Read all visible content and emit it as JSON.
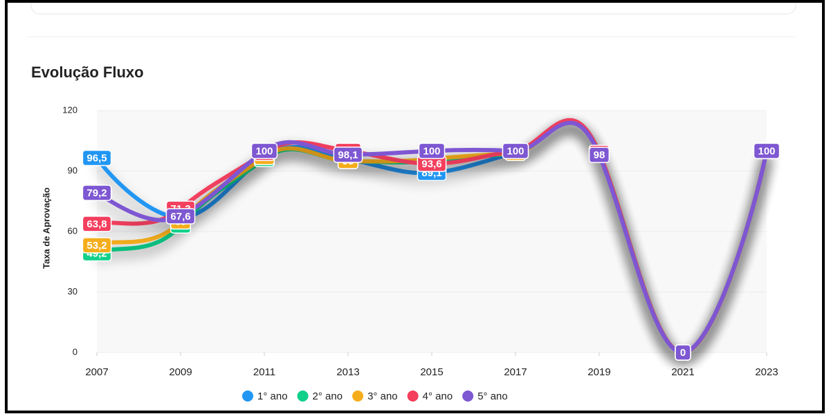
{
  "chart_data": {
    "type": "line",
    "title": "Evolução Fluxo",
    "y_label": "Taxa de Aprovação",
    "x": [
      2007,
      2009,
      2011,
      2013,
      2015,
      2017,
      2019,
      2021,
      2023
    ],
    "xlim": [
      2007,
      2023
    ],
    "xticks": [
      2007,
      2009,
      2011,
      2013,
      2015,
      2017,
      2019,
      2021,
      2023
    ],
    "ylim": [
      0,
      120
    ],
    "yticks": [
      0,
      30,
      60,
      90,
      120
    ],
    "grid": true,
    "legend": "bottom",
    "series": [
      {
        "name": "1° ano",
        "color": "#2196f3",
        "values": [
          96.5,
          67,
          97,
          96,
          89.1,
          99,
          99,
          0,
          100
        ],
        "value_labels": [
          "96,5",
          "67",
          "97",
          "96",
          "89,1",
          "99",
          "99",
          "0",
          "100"
        ]
      },
      {
        "name": "2° ano",
        "color": "#10d08a",
        "values": [
          49.2,
          63,
          96,
          95,
          95,
          99,
          99,
          0,
          100
        ],
        "value_labels": [
          "49,2",
          "63",
          "96",
          "95",
          "95",
          "99",
          "99",
          "0",
          "100"
        ]
      },
      {
        "name": "3° ano",
        "color": "#f5ad1b",
        "values": [
          53.2,
          65,
          97,
          95,
          96,
          99,
          99,
          0,
          100
        ],
        "value_labels": [
          "53,2",
          "65",
          "97",
          "95",
          "96",
          "99",
          "99",
          "0",
          "100"
        ]
      },
      {
        "name": "4° ano",
        "color": "#f43f5e",
        "values": [
          63.8,
          71.3,
          99,
          100,
          93.6,
          100,
          99,
          0,
          100
        ],
        "value_labels": [
          "63,8",
          "71,3",
          "99",
          "100",
          "93,6",
          "100",
          "99",
          "0",
          "100"
        ]
      },
      {
        "name": "5° ano",
        "color": "#7e57d2",
        "values": [
          79.2,
          67.6,
          100,
          98.1,
          100,
          100,
          98,
          0,
          100
        ],
        "value_labels": [
          "79,2",
          "67,6",
          "100",
          "98,1",
          "100",
          "100",
          "98",
          "0",
          "100"
        ]
      }
    ]
  }
}
